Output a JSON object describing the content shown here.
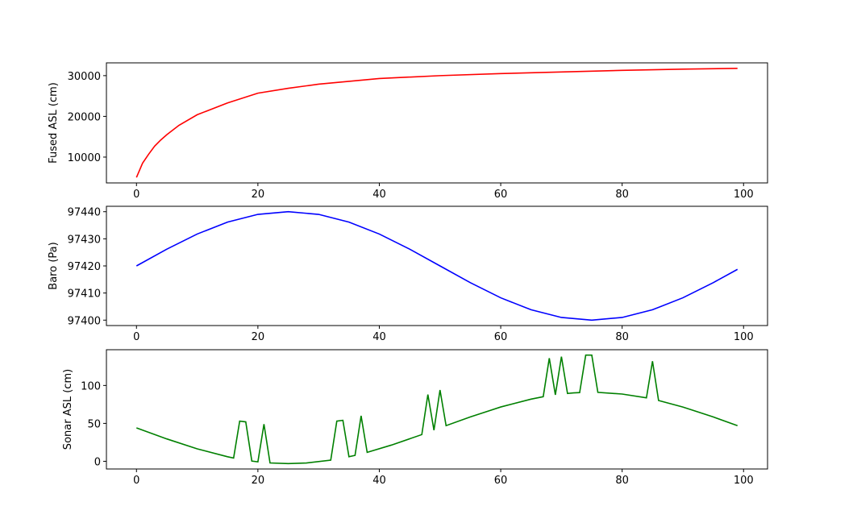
{
  "chart_data": [
    {
      "type": "line",
      "ylabel": "Fused ASL (cm)",
      "color": "#ff0000",
      "x": [
        0,
        1,
        2,
        3,
        4,
        5,
        7,
        10,
        15,
        20,
        25,
        30,
        40,
        50,
        60,
        70,
        80,
        90,
        99
      ],
      "values": [
        5000,
        8500,
        10700,
        12700,
        14200,
        15500,
        17800,
        20400,
        23300,
        25700,
        26900,
        27900,
        29300,
        30000,
        30500,
        30900,
        31300,
        31600,
        31800
      ],
      "xlim": [
        -4.95,
        103.95
      ],
      "xticks": [
        0,
        20,
        40,
        60,
        80,
        100
      ],
      "ylim": [
        3660,
        33140
      ],
      "yticks": [
        10000,
        20000,
        30000
      ]
    },
    {
      "type": "line",
      "ylabel": "Baro (Pa)",
      "color": "#0000ff",
      "x": [
        0,
        5,
        10,
        15,
        20,
        25,
        30,
        35,
        40,
        45,
        50,
        55,
        60,
        65,
        70,
        75,
        80,
        85,
        90,
        95,
        99
      ],
      "values": [
        97420,
        97426.18,
        97431.76,
        97436.18,
        97439.02,
        97440,
        97439.02,
        97436.18,
        97431.76,
        97426.18,
        97420,
        97413.82,
        97408.24,
        97403.82,
        97400.98,
        97400,
        97400.98,
        97403.82,
        97408.24,
        97413.82,
        97418.74
      ],
      "xlim": [
        -4.95,
        103.95
      ],
      "xticks": [
        0,
        20,
        40,
        60,
        80,
        100
      ],
      "ylim": [
        97398,
        97442
      ],
      "yticks": [
        97400,
        97410,
        97420,
        97430,
        97440
      ]
    },
    {
      "type": "line",
      "ylabel": "Sonar ASL (cm)",
      "color": "#008000",
      "x": [
        0,
        5,
        10,
        15,
        16,
        17,
        18,
        19,
        20,
        21,
        22,
        25,
        28,
        32,
        33,
        34,
        35,
        36,
        37,
        38,
        42,
        47,
        48,
        49,
        50,
        51,
        55,
        60,
        65,
        67,
        68,
        69,
        70,
        71,
        72,
        73,
        74,
        75,
        76,
        80,
        84,
        85,
        86,
        90,
        95,
        99
      ],
      "values": [
        44,
        29.5,
        16.4,
        6,
        4.3,
        53,
        52,
        0.3,
        -0.7,
        49,
        -2.2,
        -3,
        -2.2,
        1.5,
        53,
        54,
        6,
        7.8,
        60,
        11.8,
        21.4,
        35.2,
        88,
        41,
        94,
        47,
        58.5,
        71.6,
        82,
        85.2,
        136,
        87.7,
        138,
        89.5,
        90.2,
        90.6,
        140,
        140,
        90.9,
        88.7,
        83.7,
        132,
        80.2,
        71.6,
        58.5,
        47
      ],
      "xlim": [
        -4.95,
        103.95
      ],
      "xticks": [
        0,
        20,
        40,
        60,
        80,
        100
      ],
      "ylim": [
        -10.15,
        147.15
      ],
      "yticks": [
        0,
        50,
        100
      ]
    }
  ]
}
